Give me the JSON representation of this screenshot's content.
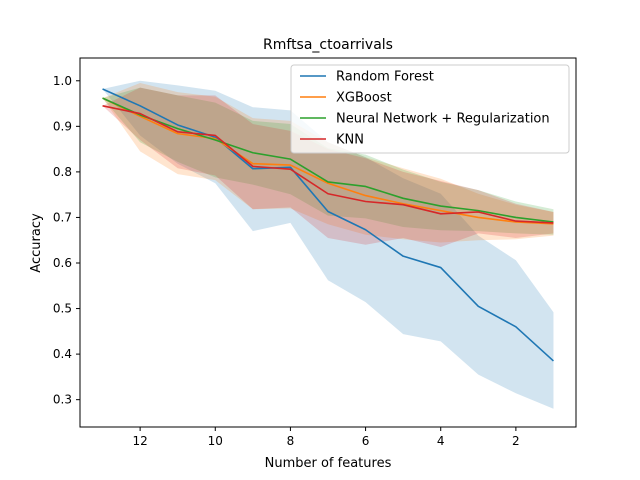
{
  "chart_data": {
    "type": "line",
    "title": "Rmftsa_ctoarrivals",
    "xlabel": "Number of features",
    "ylabel": "Accuracy",
    "x_reversed": true,
    "xlim": [
      13.6,
      0.4
    ],
    "ylim": [
      0.24,
      1.05
    ],
    "xticks": [
      12,
      10,
      8,
      6,
      4,
      2
    ],
    "yticks": [
      0.3,
      0.4,
      0.5,
      0.6,
      0.7,
      0.8,
      0.9,
      1.0
    ],
    "ytick_labels": [
      "0.3",
      "0.4",
      "0.5",
      "0.6",
      "0.7",
      "0.8",
      "0.9",
      "1.0"
    ],
    "legend_position": "top-right",
    "grid": false,
    "x": [
      13,
      12,
      11,
      10,
      9,
      8,
      7,
      6,
      5,
      4,
      3,
      2,
      1
    ],
    "series": [
      {
        "name": "Random Forest",
        "color": "#1f77b4",
        "values": [
          0.982,
          0.945,
          0.903,
          0.876,
          0.807,
          0.81,
          0.713,
          0.673,
          0.615,
          0.59,
          0.505,
          0.46,
          0.385
        ],
        "upper": [
          0.982,
          1.0,
          0.99,
          0.978,
          0.942,
          0.935,
          0.865,
          0.832,
          0.786,
          0.752,
          0.66,
          0.606,
          0.492
        ],
        "lower": [
          0.982,
          0.88,
          0.818,
          0.775,
          0.67,
          0.688,
          0.562,
          0.514,
          0.444,
          0.428,
          0.355,
          0.314,
          0.28
        ]
      },
      {
        "name": "XGBoost",
        "color": "#ff7f0e",
        "values": [
          0.962,
          0.922,
          0.884,
          0.873,
          0.818,
          0.815,
          0.775,
          0.748,
          0.73,
          0.715,
          0.7,
          0.69,
          0.686
        ],
        "upper": [
          0.962,
          0.995,
          0.975,
          0.965,
          0.918,
          0.912,
          0.865,
          0.832,
          0.808,
          0.785,
          0.752,
          0.728,
          0.712
        ],
        "lower": [
          0.962,
          0.845,
          0.795,
          0.782,
          0.718,
          0.72,
          0.685,
          0.662,
          0.652,
          0.645,
          0.65,
          0.652,
          0.66
        ]
      },
      {
        "name": "Neural Network + Regularization",
        "color": "#2ca02c",
        "values": [
          0.962,
          0.925,
          0.895,
          0.87,
          0.842,
          0.828,
          0.778,
          0.768,
          0.742,
          0.725,
          0.715,
          0.7,
          0.69
        ],
        "upper": [
          0.962,
          0.985,
          0.968,
          0.952,
          0.912,
          0.905,
          0.852,
          0.838,
          0.805,
          0.778,
          0.76,
          0.735,
          0.718
        ],
        "lower": [
          0.962,
          0.865,
          0.822,
          0.788,
          0.772,
          0.751,
          0.704,
          0.698,
          0.679,
          0.672,
          0.67,
          0.665,
          0.662
        ]
      },
      {
        "name": "KNN",
        "color": "#d62728",
        "values": [
          0.945,
          0.928,
          0.888,
          0.88,
          0.812,
          0.806,
          0.752,
          0.735,
          0.728,
          0.708,
          0.712,
          0.692,
          0.688
        ],
        "upper": [
          0.945,
          0.985,
          0.968,
          0.968,
          0.905,
          0.89,
          0.85,
          0.83,
          0.8,
          0.78,
          0.76,
          0.73,
          0.712
        ],
        "lower": [
          0.945,
          0.87,
          0.808,
          0.792,
          0.718,
          0.722,
          0.655,
          0.64,
          0.655,
          0.635,
          0.665,
          0.655,
          0.665
        ]
      }
    ]
  }
}
